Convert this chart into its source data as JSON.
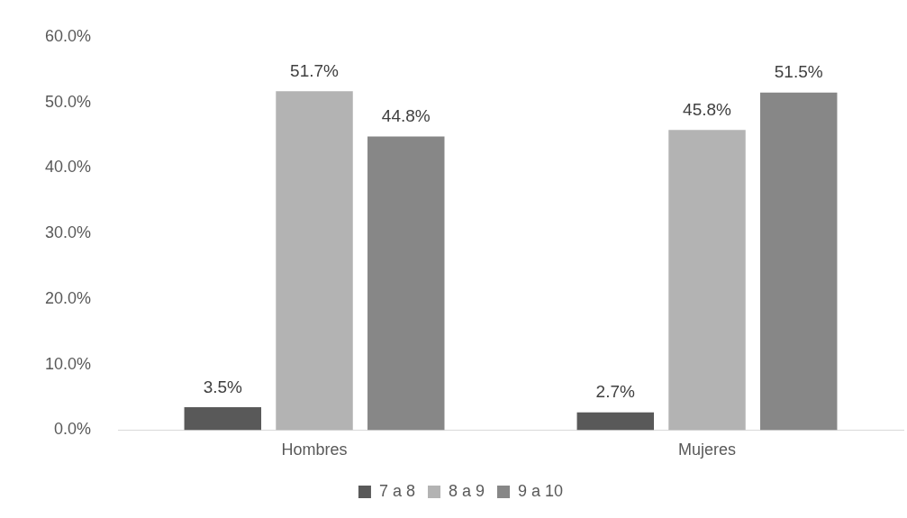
{
  "chart_data": {
    "type": "bar",
    "categories": [
      "Hombres",
      "Mujeres"
    ],
    "series": [
      {
        "name": "7 a 8",
        "color": "#595959",
        "values": [
          3.5,
          2.7
        ],
        "value_labels": [
          "3.5%",
          "2.7%"
        ]
      },
      {
        "name": "8 a 9",
        "color": "#b3b3b3",
        "values": [
          51.7,
          45.8
        ],
        "value_labels": [
          "51.7%",
          "45.8%"
        ]
      },
      {
        "name": "9 a 10",
        "color": "#878787",
        "values": [
          44.8,
          51.5
        ],
        "value_labels": [
          "44.8%",
          "51.5%"
        ]
      }
    ],
    "ylim": [
      0,
      60
    ],
    "yticks": [
      {
        "value": 0,
        "label": "0.0%"
      },
      {
        "value": 10,
        "label": "10.0%"
      },
      {
        "value": 20,
        "label": "20.0%"
      },
      {
        "value": 30,
        "label": "30.0%"
      },
      {
        "value": 40,
        "label": "40.0%"
      },
      {
        "value": 50,
        "label": "50.0%"
      },
      {
        "value": 60,
        "label": "60.0%"
      }
    ],
    "grid": false,
    "legend": "bottom"
  }
}
